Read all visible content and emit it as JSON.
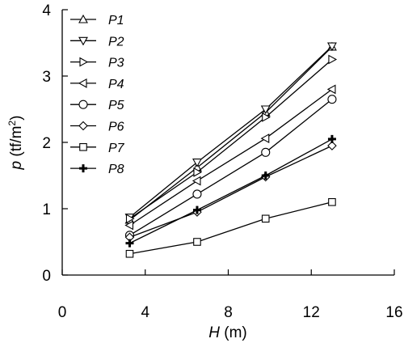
{
  "chart_data": {
    "type": "line",
    "xlabel": {
      "var": "H",
      "unit": " (m)"
    },
    "ylabel": {
      "var": "p",
      "unit_pre": " (tf/m",
      "unit_sup": "2",
      "unit_post": ")"
    },
    "xlim": [
      0,
      16
    ],
    "ylim": [
      0,
      4
    ],
    "xticks": [
      0,
      4,
      8,
      12,
      16
    ],
    "yticks": [
      0,
      1,
      2,
      3,
      4
    ],
    "grid": false,
    "legend_position": "top-left",
    "series": [
      {
        "name": "P1",
        "marker": "triangle-up",
        "x": [
          3.25,
          6.5,
          9.8,
          13.0
        ],
        "y": [
          0.83,
          1.62,
          2.45,
          3.44
        ]
      },
      {
        "name": "P2",
        "marker": "triangle-down",
        "x": [
          3.25,
          6.5,
          9.8,
          13.0
        ],
        "y": [
          0.87,
          1.7,
          2.5,
          3.45
        ]
      },
      {
        "name": "P3",
        "marker": "triangle-right",
        "x": [
          3.25,
          6.5,
          9.8,
          13.0
        ],
        "y": [
          0.85,
          1.55,
          2.38,
          3.25
        ]
      },
      {
        "name": "P4",
        "marker": "triangle-left",
        "x": [
          3.25,
          6.5,
          9.8,
          13.0
        ],
        "y": [
          0.75,
          1.42,
          2.06,
          2.8
        ]
      },
      {
        "name": "P5",
        "marker": "circle",
        "x": [
          3.25,
          6.5,
          9.8,
          13.0
        ],
        "y": [
          0.6,
          1.22,
          1.85,
          2.65
        ]
      },
      {
        "name": "P6",
        "marker": "diamond",
        "x": [
          3.25,
          6.5,
          9.8,
          13.0
        ],
        "y": [
          0.57,
          0.95,
          1.48,
          1.95
        ]
      },
      {
        "name": "P7",
        "marker": "square",
        "x": [
          3.25,
          6.5,
          9.8,
          13.0
        ],
        "y": [
          0.32,
          0.5,
          0.85,
          1.1
        ]
      },
      {
        "name": "P8",
        "marker": "plus",
        "x": [
          3.25,
          6.5,
          9.8,
          13.0
        ],
        "y": [
          0.48,
          0.98,
          1.5,
          2.05
        ]
      }
    ]
  }
}
